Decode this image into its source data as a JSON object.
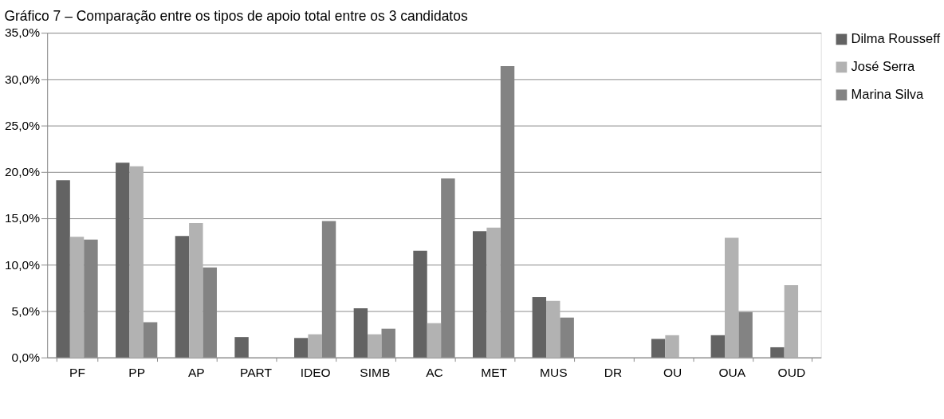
{
  "chart_data": {
    "type": "bar",
    "title": "Gráfico 7 – Comparação entre os tipos de apoio total entre os 3 candidatos",
    "categories": [
      "PF",
      "PP",
      "AP",
      "PART",
      "IDEO",
      "SIMB",
      "AC",
      "MET",
      "MUS",
      "DR",
      "OU",
      "OUA",
      "OUD"
    ],
    "series": [
      {
        "name": "Dilma Rousseff",
        "color": "#636363",
        "values": [
          19.1,
          21.0,
          13.1,
          2.2,
          2.1,
          5.3,
          11.5,
          13.6,
          6.5,
          0,
          2.0,
          2.4,
          1.1
        ]
      },
      {
        "name": "José Serra",
        "color": "#b2b2b2",
        "values": [
          13.0,
          20.6,
          14.5,
          0,
          2.5,
          2.5,
          3.7,
          14.0,
          6.1,
          0,
          2.4,
          12.9,
          7.8
        ]
      },
      {
        "name": "Marina Silva",
        "color": "#838383",
        "values": [
          12.7,
          3.8,
          9.7,
          0,
          14.7,
          3.1,
          19.3,
          31.4,
          4.3,
          0,
          0,
          4.9,
          0
        ]
      }
    ],
    "ylim": [
      0,
      35
    ],
    "yticks": [
      {
        "value": 0,
        "label": "0,0%"
      },
      {
        "value": 5,
        "label": "5,0%"
      },
      {
        "value": 10,
        "label": "10,0%"
      },
      {
        "value": 15,
        "label": "15,0%"
      },
      {
        "value": 20,
        "label": "20,0%"
      },
      {
        "value": 25,
        "label": "25,0%"
      },
      {
        "value": 30,
        "label": "30,0%"
      },
      {
        "value": 35,
        "label": "35,0%"
      }
    ],
    "grid": "y",
    "legend": "right"
  }
}
